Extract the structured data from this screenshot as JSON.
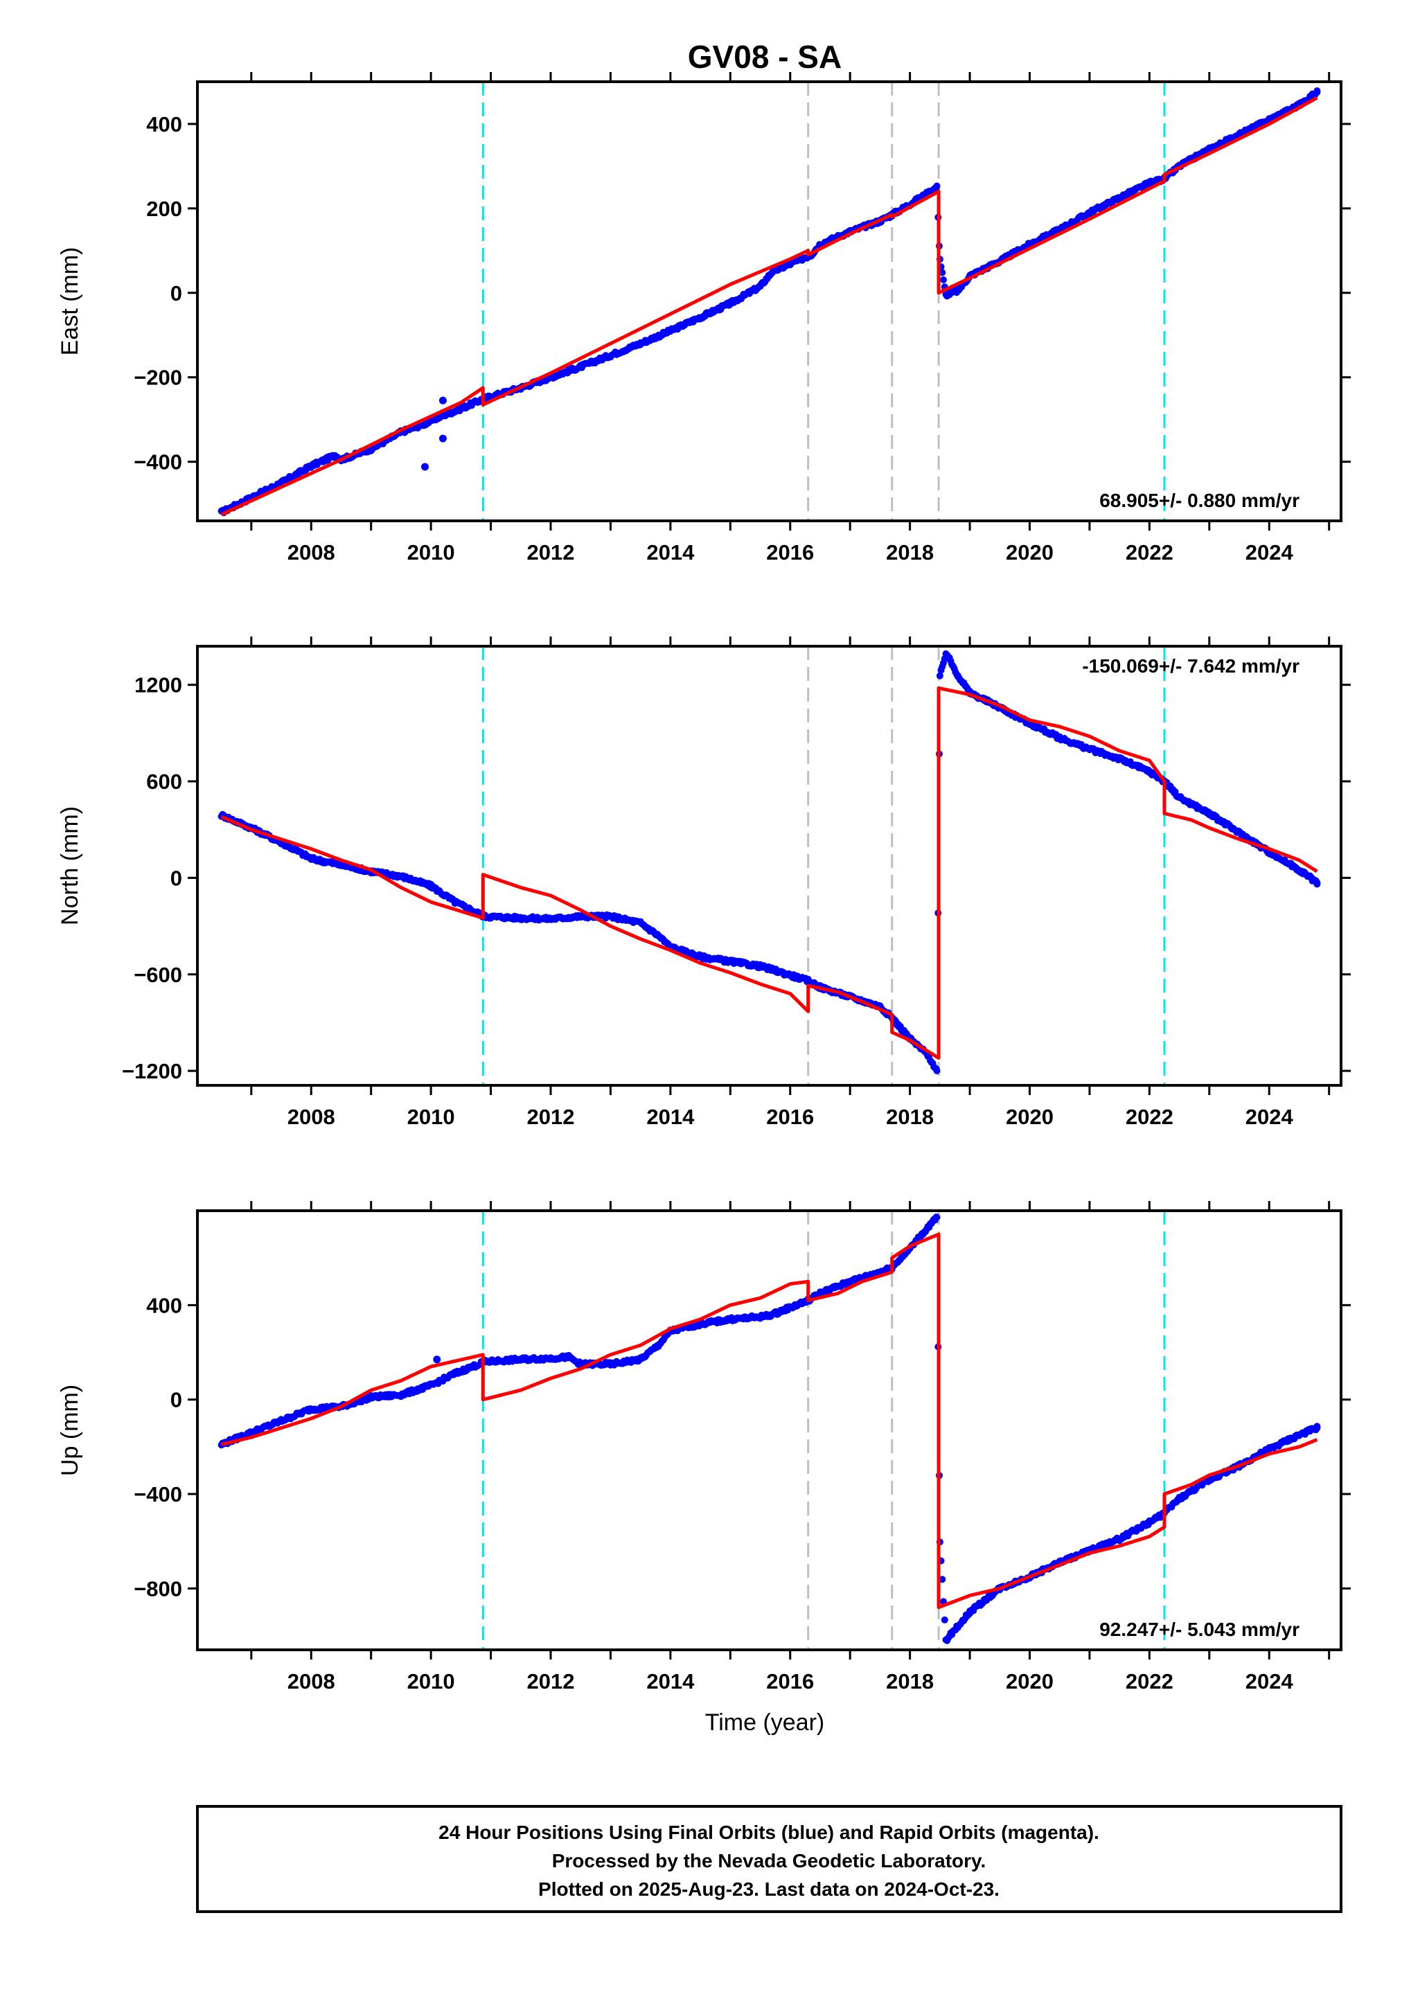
{
  "title": "GV08 - SA",
  "x_axis_label": "Time (year)",
  "x_ticks": [
    "2008",
    "2010",
    "2012",
    "2014",
    "2016",
    "2018",
    "2020",
    "2022",
    "2024"
  ],
  "colors": {
    "observed": "#0000ff",
    "model": "#ff0000",
    "equipment_change": "#00e5ee",
    "earthquake": "#bebebe"
  },
  "footer": {
    "line1": "24 Hour Positions Using Final Orbits (blue) and Rapid Orbits (magenta).",
    "line2": "Processed by the Nevada Geodetic Laboratory.",
    "line3": "Plotted on 2025-Aug-23. Last data on 2024-Oct-23."
  },
  "chart_data": [
    {
      "type": "scatter",
      "component": "east",
      "ylabel": "East (mm)",
      "rate": "68.905+/- 0.880 mm/yr",
      "rate_position": "bottom-right",
      "xlim": [
        2006.1,
        2025.2
      ],
      "ylim": [
        -540,
        500
      ],
      "yticks": [
        -400,
        -200,
        0,
        200,
        400
      ],
      "equipment_change_lines": [
        2010.87,
        2022.25
      ],
      "earthquake_lines": [
        2016.3,
        2017.7,
        2018.48
      ],
      "series": [
        {
          "values_kind": "observed",
          "x": [
            2006.5,
            2007.0,
            2007.5,
            2008.0,
            2008.4,
            2008.5,
            2009.0,
            2009.5,
            2009.9,
            2010.2,
            2010.4,
            2010.9,
            2011.5,
            2012.0,
            2012.5,
            2013.0,
            2013.5,
            2014.0,
            2014.5,
            2015.0,
            2015.5,
            2015.7,
            2016.35,
            2016.5,
            2017.0,
            2017.5,
            2017.7,
            2018.0,
            2018.45,
            2018.5,
            2018.6,
            2018.8,
            2019.0,
            2019.5,
            2020.0,
            2020.5,
            2021.0,
            2021.5,
            2022.0,
            2022.25,
            2022.5,
            2023.0,
            2023.5,
            2024.0,
            2024.5,
            2024.8
          ],
          "y": [
            -520,
            -485,
            -450,
            -410,
            -385,
            -395,
            -370,
            -330,
            -310,
            -290,
            -280,
            -250,
            -225,
            -200,
            -175,
            -148,
            -120,
            -90,
            -58,
            -25,
            15,
            50,
            90,
            115,
            145,
            170,
            185,
            210,
            250,
            80,
            -5,
            5,
            40,
            75,
            115,
            150,
            190,
            225,
            260,
            270,
            300,
            340,
            375,
            410,
            445,
            475
          ]
        },
        {
          "values_kind": "outliers",
          "x": [
            2009.9,
            2010.2,
            2010.2
          ],
          "y": [
            -412,
            -345,
            -255
          ]
        },
        {
          "values_kind": "model",
          "x": [
            2006.5,
            2007.5,
            2008.5,
            2009.5,
            2010.5,
            2010.87,
            2010.87,
            2012.0,
            2013.0,
            2014.0,
            2015.0,
            2016.0,
            2016.3,
            2016.3,
            2017.0,
            2017.7,
            2017.7,
            2018.48,
            2018.48,
            2019.0,
            2020.0,
            2021.0,
            2022.25,
            2022.25,
            2023.0,
            2024.0,
            2024.8
          ],
          "y": [
            -525,
            -460,
            -395,
            -325,
            -260,
            -225,
            -265,
            -190,
            -120,
            -50,
            20,
            80,
            100,
            90,
            140,
            185,
            180,
            240,
            0,
            35,
            105,
            175,
            265,
            280,
            330,
            400,
            462
          ]
        }
      ]
    },
    {
      "type": "scatter",
      "component": "north",
      "ylabel": "North (mm)",
      "rate": "-150.069+/- 7.642 mm/yr",
      "rate_position": "top-right",
      "xlim": [
        2006.1,
        2025.2
      ],
      "ylim": [
        -1290,
        1440
      ],
      "yticks": [
        -1200,
        -600,
        0,
        600,
        1200
      ],
      "equipment_change_lines": [
        2010.87,
        2022.25
      ],
      "earthquake_lines": [
        2016.3,
        2017.7,
        2018.48
      ],
      "series": [
        {
          "values_kind": "observed",
          "x": [
            2006.5,
            2007.0,
            2007.5,
            2008.0,
            2008.5,
            2009.0,
            2009.5,
            2010.0,
            2010.4,
            2010.9,
            2011.5,
            2012.0,
            2012.5,
            2013.0,
            2013.5,
            2013.8,
            2014.0,
            2014.5,
            2015.0,
            2015.5,
            2015.7,
            2016.3,
            2016.5,
            2017.0,
            2017.5,
            2017.7,
            2018.0,
            2018.3,
            2018.45,
            2018.5,
            2018.6,
            2018.8,
            2019.0,
            2019.5,
            2020.0,
            2020.5,
            2021.0,
            2021.5,
            2022.0,
            2022.25,
            2022.5,
            2023.0,
            2023.5,
            2024.0,
            2024.5,
            2024.8
          ],
          "y": [
            390,
            310,
            220,
            120,
            80,
            40,
            10,
            -50,
            -150,
            -240,
            -250,
            -255,
            -240,
            -240,
            -280,
            -360,
            -430,
            -490,
            -520,
            -550,
            -570,
            -640,
            -680,
            -740,
            -800,
            -870,
            -1000,
            -1100,
            -1200,
            1250,
            1400,
            1260,
            1150,
            1060,
            960,
            870,
            800,
            740,
            660,
            600,
            500,
            400,
            280,
            160,
            50,
            -30
          ]
        },
        {
          "values_kind": "model",
          "x": [
            2006.5,
            2007.0,
            2007.5,
            2008.0,
            2008.5,
            2009.0,
            2009.5,
            2010.0,
            2010.87,
            2010.87,
            2011.5,
            2012.0,
            2012.5,
            2013.0,
            2013.5,
            2014.0,
            2014.5,
            2015.0,
            2015.5,
            2016.0,
            2016.3,
            2016.3,
            2016.8,
            2017.2,
            2017.7,
            2017.7,
            2018.0,
            2018.48,
            2018.48,
            2019.0,
            2019.5,
            2020.0,
            2020.5,
            2021.0,
            2021.5,
            2022.0,
            2022.25,
            2022.25,
            2022.7,
            2023.0,
            2023.5,
            2024.0,
            2024.5,
            2024.8
          ],
          "y": [
            380,
            300,
            240,
            180,
            110,
            50,
            -60,
            -150,
            -250,
            20,
            -60,
            -110,
            -200,
            -300,
            -380,
            -450,
            -530,
            -590,
            -660,
            -720,
            -830,
            -670,
            -710,
            -770,
            -850,
            -960,
            -1010,
            -1120,
            1180,
            1140,
            1070,
            980,
            940,
            880,
            790,
            730,
            600,
            400,
            360,
            310,
            240,
            180,
            110,
            40
          ]
        }
      ]
    },
    {
      "type": "scatter",
      "component": "up",
      "ylabel": "Up (mm)",
      "rate": "92.247+/- 5.043 mm/yr",
      "rate_position": "bottom-right",
      "xlim": [
        2006.1,
        2025.2
      ],
      "ylim": [
        -1060,
        800
      ],
      "yticks": [
        -800,
        -400,
        0,
        400
      ],
      "equipment_change_lines": [
        2010.87,
        2022.25
      ],
      "earthquake_lines": [
        2016.3,
        2017.7,
        2018.48
      ],
      "series": [
        {
          "values_kind": "observed",
          "x": [
            2006.5,
            2007.0,
            2007.5,
            2008.0,
            2008.5,
            2009.0,
            2009.5,
            2010.0,
            2010.4,
            2010.9,
            2011.5,
            2012.0,
            2012.3,
            2012.5,
            2013.0,
            2013.5,
            2013.8,
            2014.0,
            2014.5,
            2015.0,
            2015.5,
            2015.7,
            2016.3,
            2016.5,
            2017.0,
            2017.5,
            2017.7,
            2018.0,
            2018.3,
            2018.45,
            2018.5,
            2018.6,
            2018.8,
            2019.0,
            2019.5,
            2020.0,
            2020.5,
            2021.0,
            2021.5,
            2022.0,
            2022.25,
            2022.5,
            2023.0,
            2023.5,
            2024.0,
            2024.5,
            2024.8
          ],
          "y": [
            -190,
            -140,
            -90,
            -40,
            -30,
            10,
            20,
            60,
            110,
            160,
            170,
            175,
            180,
            150,
            150,
            170,
            230,
            290,
            320,
            340,
            350,
            360,
            420,
            450,
            500,
            540,
            560,
            640,
            730,
            770,
            -600,
            -1020,
            -960,
            -900,
            -800,
            -750,
            -690,
            -640,
            -590,
            -520,
            -480,
            -420,
            -340,
            -280,
            -210,
            -150,
            -120
          ]
        },
        {
          "values_kind": "outliers",
          "x": [
            2010.1
          ],
          "y": [
            170
          ]
        },
        {
          "values_kind": "model",
          "x": [
            2006.5,
            2007.0,
            2007.5,
            2008.0,
            2008.5,
            2009.0,
            2009.5,
            2010.0,
            2010.87,
            2010.87,
            2011.5,
            2012.0,
            2012.5,
            2013.0,
            2013.5,
            2014.0,
            2014.5,
            2015.0,
            2015.5,
            2016.0,
            2016.3,
            2016.3,
            2016.8,
            2017.2,
            2017.7,
            2017.7,
            2018.0,
            2018.48,
            2018.48,
            2019.0,
            2019.5,
            2020.0,
            2020.5,
            2021.0,
            2021.5,
            2022.0,
            2022.25,
            2022.25,
            2022.7,
            2023.0,
            2023.5,
            2024.0,
            2024.5,
            2024.8
          ],
          "y": [
            -190,
            -160,
            -120,
            -80,
            -30,
            40,
            80,
            140,
            190,
            0,
            40,
            90,
            130,
            190,
            230,
            300,
            340,
            400,
            430,
            490,
            500,
            420,
            450,
            500,
            540,
            600,
            650,
            700,
            -880,
            -830,
            -800,
            -750,
            -700,
            -650,
            -620,
            -580,
            -540,
            -400,
            -360,
            -320,
            -280,
            -230,
            -200,
            -170
          ]
        }
      ]
    }
  ]
}
